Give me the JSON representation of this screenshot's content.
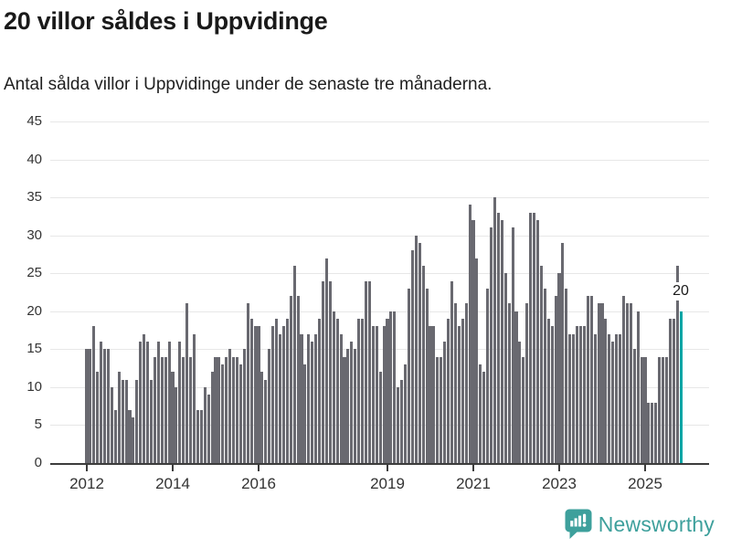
{
  "header": {
    "title": "20 villor såldes i Uppvidinge",
    "subtitle": "Antal sålda villor i Uppvidinge under de senaste tre månaderna."
  },
  "chart_data": {
    "type": "bar",
    "title": "20 villor såldes i Uppvidinge",
    "subtitle": "Antal sålda villor i Uppvidinge under de senaste tre månaderna.",
    "x_start_month": "2012-01",
    "x_end_month": "2025-11",
    "x_cadence": "monthly",
    "values_by_year": {
      "2012": [
        15,
        15,
        18,
        12,
        16,
        15,
        15,
        10,
        7,
        12,
        11,
        11
      ],
      "2013": [
        7,
        6,
        11,
        16,
        17,
        16,
        11,
        14,
        16,
        14,
        14,
        16
      ],
      "2014": [
        12,
        10,
        16,
        14,
        21,
        14,
        17,
        7,
        7,
        10,
        9,
        12
      ],
      "2015": [
        14,
        14,
        13,
        14,
        15,
        14,
        14,
        13,
        15,
        21,
        19,
        18
      ],
      "2016": [
        18,
        12,
        11,
        15,
        18,
        19,
        17,
        18,
        19,
        22,
        26,
        22
      ],
      "2017": [
        17,
        13,
        17,
        16,
        17,
        19,
        24,
        27,
        24,
        20,
        19,
        17
      ],
      "2018": [
        14,
        15,
        16,
        15,
        19,
        19,
        24,
        24,
        18,
        18,
        12,
        18
      ],
      "2019": [
        19,
        20,
        20,
        10,
        11,
        13,
        23,
        28,
        30,
        29,
        26,
        23
      ],
      "2020": [
        18,
        18,
        14,
        14,
        16,
        19,
        24,
        21,
        18,
        19,
        21,
        34
      ],
      "2021": [
        32,
        27,
        13,
        12,
        23,
        31,
        35,
        33,
        32,
        25,
        21,
        31
      ],
      "2022": [
        20,
        16,
        14,
        21,
        33,
        33,
        32,
        26,
        23,
        19,
        18,
        22
      ],
      "2023": [
        25,
        29,
        23,
        17,
        17,
        18,
        18,
        18,
        22,
        22,
        17,
        21
      ],
      "2024": [
        21,
        19,
        17,
        16,
        17,
        17,
        22,
        21,
        21,
        15,
        20,
        14
      ],
      "2025": [
        14,
        8,
        8,
        8,
        14,
        14,
        14,
        19,
        19,
        26,
        20
      ]
    },
    "ylim": [
      0,
      45
    ],
    "yticks": [
      0,
      5,
      10,
      15,
      20,
      25,
      30,
      35,
      40,
      45
    ],
    "xticks": [
      {
        "label": "2012",
        "month_index": 0
      },
      {
        "label": "2014",
        "month_index": 24
      },
      {
        "label": "2016",
        "month_index": 48
      },
      {
        "label": "2019",
        "month_index": 84
      },
      {
        "label": "2021",
        "month_index": 108
      },
      {
        "label": "2023",
        "month_index": 132
      },
      {
        "label": "2025",
        "month_index": 156
      }
    ],
    "grid": true,
    "legend": "none",
    "bar_color": "#696970",
    "highlight": {
      "month": "2025-11",
      "month_index": 166,
      "value": 20,
      "color": "#00a5a5"
    },
    "annotation": {
      "text": "20"
    }
  },
  "footer": {
    "logo_text": "Newsworthy",
    "logo_color": "#3ea09c"
  }
}
